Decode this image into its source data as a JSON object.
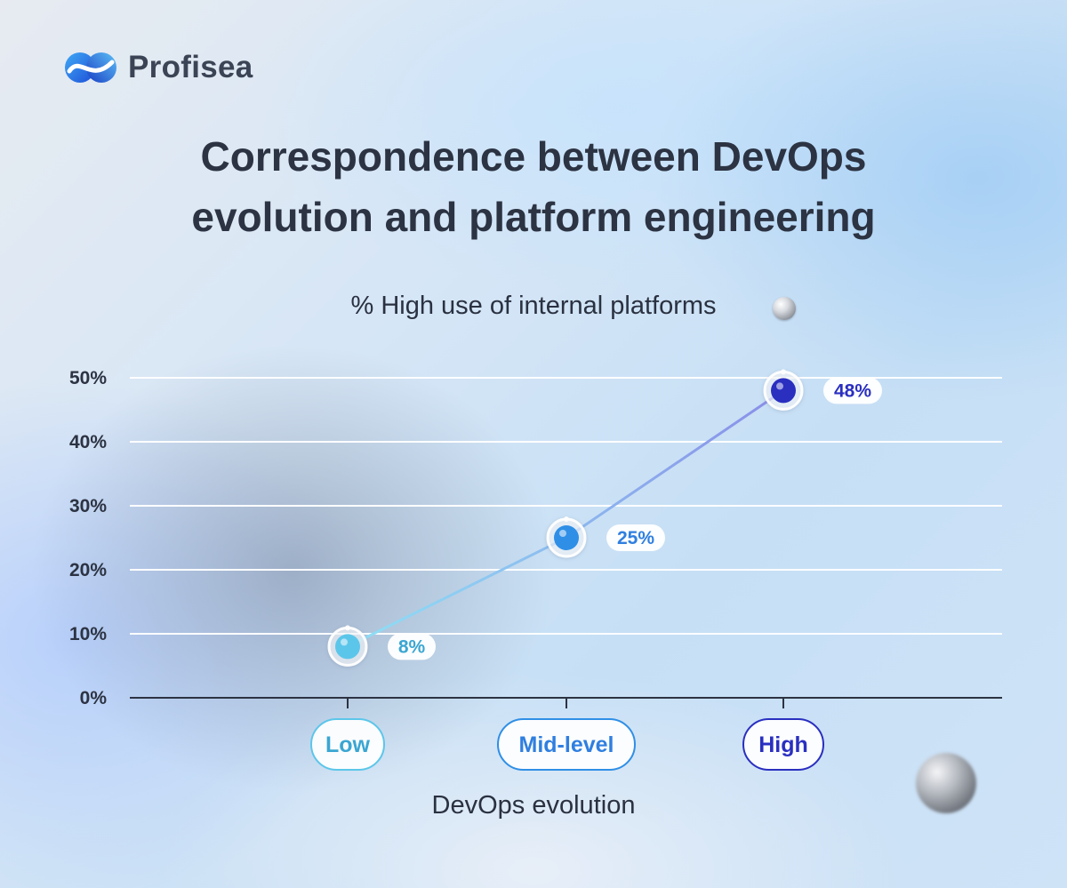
{
  "brand": {
    "name": "Profisea"
  },
  "title_line1": "Correspondence between DevOps",
  "title_line2": "evolution and platform engineering",
  "colors": {
    "low": "#5cc6ea",
    "mid": "#2f8fe6",
    "high": "#2a2fc0",
    "text": "#2c3342"
  },
  "chart_data": {
    "type": "line",
    "title": "% High use of internal platforms",
    "xlabel": "DevOps evolution",
    "ylabel": "",
    "categories": [
      "Low",
      "Mid-level",
      "High"
    ],
    "series": [
      {
        "values": [
          8,
          25,
          48
        ]
      }
    ],
    "data_labels": [
      "8%",
      "25%",
      "48%"
    ],
    "ylim": [
      0,
      50
    ],
    "yticks": [
      "0%",
      "10%",
      "20%",
      "30%",
      "40%",
      "50%"
    ],
    "grid": true
  }
}
